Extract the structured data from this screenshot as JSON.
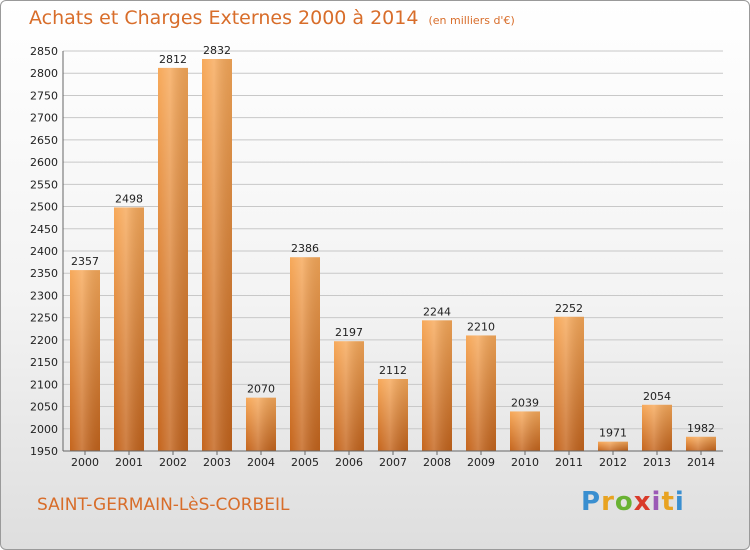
{
  "chart_data": {
    "type": "bar",
    "title": "Achats et Charges Externes 2000 à 2014",
    "subtitle": "(en milliers d'€)",
    "categories": [
      "2000",
      "2001",
      "2002",
      "2003",
      "2004",
      "2005",
      "2006",
      "2007",
      "2008",
      "2009",
      "2010",
      "2011",
      "2012",
      "2013",
      "2014"
    ],
    "values": [
      2357,
      2498,
      2812,
      2832,
      2070,
      2386,
      2197,
      2112,
      2244,
      2210,
      2039,
      2252,
      1971,
      2054,
      1982
    ],
    "ylim": [
      1950,
      2850
    ],
    "ytick_step": 50,
    "grid": true,
    "bar_color": "#f0923a",
    "title_color": "#d86d2a"
  },
  "footer": {
    "place": "SAINT-GERMAIN-LèS-CORBEIL",
    "logo_letters": [
      {
        "ch": "P",
        "color": "#3a8fd0"
      },
      {
        "ch": "r",
        "color": "#e8a321"
      },
      {
        "ch": "o",
        "color": "#69b233"
      },
      {
        "ch": "x",
        "color": "#d93b2b"
      },
      {
        "ch": "i",
        "color": "#9b59b6"
      },
      {
        "ch": "t",
        "color": "#e8a321"
      },
      {
        "ch": "i",
        "color": "#3a8fd0"
      }
    ]
  }
}
